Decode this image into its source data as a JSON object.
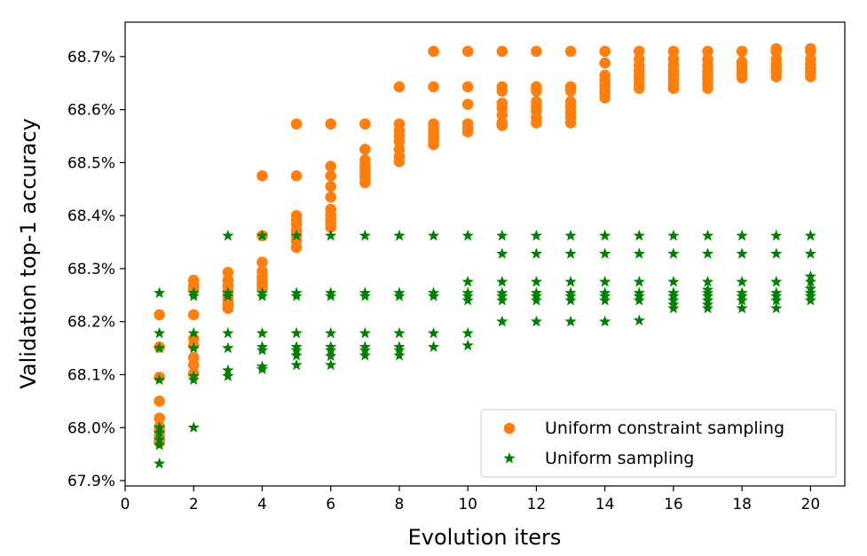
{
  "chart_data": {
    "type": "scatter",
    "title": "",
    "xlabel": "Evolution iters",
    "ylabel": "Validation top-1 accuracy",
    "xlim": [
      0,
      21
    ],
    "ylim": [
      67.89,
      68.765
    ],
    "xticks": [
      0,
      2,
      4,
      6,
      8,
      10,
      12,
      14,
      16,
      18,
      20
    ],
    "xtick_labels": [
      "0",
      "2",
      "4",
      "6",
      "8",
      "10",
      "12",
      "14",
      "16",
      "18",
      "20"
    ],
    "yticks": [
      67.9,
      68.0,
      68.1,
      68.2,
      68.3,
      68.4,
      68.5,
      68.6,
      68.7
    ],
    "ytick_labels": [
      "67.9%",
      "68.0%",
      "68.1%",
      "68.2%",
      "68.3%",
      "68.4%",
      "68.5%",
      "68.6%",
      "68.7%"
    ],
    "grid": false,
    "legend_position": "bottom-right",
    "series": [
      {
        "name": "Uniform constraint sampling",
        "marker": "circle",
        "color": "#ff7f0e",
        "points": [
          [
            1,
            68.213
          ],
          [
            1,
            68.152
          ],
          [
            1,
            68.095
          ],
          [
            1,
            68.05
          ],
          [
            1,
            68.018
          ],
          [
            1,
            68.002
          ],
          [
            1,
            67.993
          ],
          [
            1,
            67.985
          ],
          [
            1,
            67.978
          ],
          [
            1,
            67.972
          ],
          [
            2,
            68.278
          ],
          [
            2,
            68.268
          ],
          [
            2,
            68.26
          ],
          [
            2,
            68.213
          ],
          [
            2,
            68.168
          ],
          [
            2,
            68.155
          ],
          [
            2,
            68.132
          ],
          [
            2,
            68.118
          ],
          [
            2,
            68.102
          ],
          [
            3,
            68.293
          ],
          [
            3,
            68.278
          ],
          [
            3,
            68.268
          ],
          [
            3,
            68.258
          ],
          [
            3,
            68.248
          ],
          [
            3,
            68.24
          ],
          [
            3,
            68.232
          ],
          [
            3,
            68.225
          ],
          [
            4,
            68.475
          ],
          [
            4,
            68.362
          ],
          [
            4,
            68.312
          ],
          [
            4,
            68.295
          ],
          [
            4,
            68.285
          ],
          [
            4,
            68.278
          ],
          [
            4,
            68.27
          ],
          [
            4,
            68.262
          ],
          [
            5,
            68.573
          ],
          [
            5,
            68.475
          ],
          [
            5,
            68.4
          ],
          [
            5,
            68.392
          ],
          [
            5,
            68.383
          ],
          [
            5,
            68.372
          ],
          [
            5,
            68.362
          ],
          [
            5,
            68.352
          ],
          [
            5,
            68.34
          ],
          [
            6,
            68.573
          ],
          [
            6,
            68.493
          ],
          [
            6,
            68.475
          ],
          [
            6,
            68.455
          ],
          [
            6,
            68.435
          ],
          [
            6,
            68.412
          ],
          [
            6,
            68.402
          ],
          [
            6,
            68.393
          ],
          [
            6,
            68.385
          ],
          [
            6,
            68.378
          ],
          [
            7,
            68.573
          ],
          [
            7,
            68.525
          ],
          [
            7,
            68.505
          ],
          [
            7,
            68.495
          ],
          [
            7,
            68.488
          ],
          [
            7,
            68.48
          ],
          [
            7,
            68.472
          ],
          [
            7,
            68.462
          ],
          [
            8,
            68.643
          ],
          [
            8,
            68.573
          ],
          [
            8,
            68.56
          ],
          [
            8,
            68.55
          ],
          [
            8,
            68.54
          ],
          [
            8,
            68.525
          ],
          [
            8,
            68.512
          ],
          [
            8,
            68.502
          ],
          [
            9,
            68.71
          ],
          [
            9,
            68.643
          ],
          [
            9,
            68.573
          ],
          [
            9,
            68.565
          ],
          [
            9,
            68.557
          ],
          [
            9,
            68.549
          ],
          [
            9,
            68.542
          ],
          [
            9,
            68.534
          ],
          [
            10,
            68.71
          ],
          [
            10,
            68.643
          ],
          [
            10,
            68.61
          ],
          [
            10,
            68.573
          ],
          [
            10,
            68.565
          ],
          [
            10,
            68.558
          ],
          [
            11,
            68.71
          ],
          [
            11,
            68.643
          ],
          [
            11,
            68.635
          ],
          [
            11,
            68.612
          ],
          [
            11,
            68.603
          ],
          [
            11,
            68.59
          ],
          [
            11,
            68.575
          ],
          [
            11,
            68.57
          ],
          [
            12,
            68.71
          ],
          [
            12,
            68.643
          ],
          [
            12,
            68.635
          ],
          [
            12,
            68.615
          ],
          [
            12,
            68.605
          ],
          [
            12,
            68.598
          ],
          [
            12,
            68.585
          ],
          [
            12,
            68.575
          ],
          [
            13,
            68.71
          ],
          [
            13,
            68.643
          ],
          [
            13,
            68.635
          ],
          [
            13,
            68.615
          ],
          [
            13,
            68.605
          ],
          [
            13,
            68.595
          ],
          [
            13,
            68.585
          ],
          [
            13,
            68.575
          ],
          [
            14,
            68.71
          ],
          [
            14,
            68.688
          ],
          [
            14,
            68.665
          ],
          [
            14,
            68.655
          ],
          [
            14,
            68.648
          ],
          [
            14,
            68.64
          ],
          [
            14,
            68.632
          ],
          [
            14,
            68.622
          ],
          [
            15,
            68.71
          ],
          [
            15,
            68.695
          ],
          [
            15,
            68.683
          ],
          [
            15,
            68.673
          ],
          [
            15,
            68.665
          ],
          [
            15,
            68.657
          ],
          [
            15,
            68.648
          ],
          [
            15,
            68.64
          ],
          [
            16,
            68.71
          ],
          [
            16,
            68.695
          ],
          [
            16,
            68.683
          ],
          [
            16,
            68.673
          ],
          [
            16,
            68.665
          ],
          [
            16,
            68.657
          ],
          [
            16,
            68.648
          ],
          [
            16,
            68.64
          ],
          [
            17,
            68.71
          ],
          [
            17,
            68.695
          ],
          [
            17,
            68.683
          ],
          [
            17,
            68.673
          ],
          [
            17,
            68.665
          ],
          [
            17,
            68.657
          ],
          [
            17,
            68.648
          ],
          [
            17,
            68.64
          ],
          [
            18,
            68.71
          ],
          [
            18,
            68.69
          ],
          [
            18,
            68.683
          ],
          [
            18,
            68.675
          ],
          [
            18,
            68.668
          ],
          [
            18,
            68.66
          ],
          [
            19,
            68.715
          ],
          [
            19,
            68.71
          ],
          [
            19,
            68.695
          ],
          [
            19,
            68.685
          ],
          [
            19,
            68.678
          ],
          [
            19,
            68.67
          ],
          [
            19,
            68.662
          ],
          [
            20,
            68.715
          ],
          [
            20,
            68.71
          ],
          [
            20,
            68.695
          ],
          [
            20,
            68.685
          ],
          [
            20,
            68.678
          ],
          [
            20,
            68.67
          ],
          [
            20,
            68.662
          ]
        ]
      },
      {
        "name": "Uniform sampling",
        "marker": "star",
        "color": "#008000",
        "points": [
          [
            1,
            68.254
          ],
          [
            1,
            68.178
          ],
          [
            1,
            68.15
          ],
          [
            1,
            68.09
          ],
          [
            1,
            68.0
          ],
          [
            1,
            67.99
          ],
          [
            1,
            67.977
          ],
          [
            1,
            67.967
          ],
          [
            1,
            67.932
          ],
          [
            2,
            68.254
          ],
          [
            2,
            68.248
          ],
          [
            2,
            68.178
          ],
          [
            2,
            68.15
          ],
          [
            2,
            68.097
          ],
          [
            2,
            68.09
          ],
          [
            2,
            68.0
          ],
          [
            3,
            68.362
          ],
          [
            3,
            68.254
          ],
          [
            3,
            68.248
          ],
          [
            3,
            68.178
          ],
          [
            3,
            68.15
          ],
          [
            3,
            68.108
          ],
          [
            3,
            68.097
          ],
          [
            4,
            68.362
          ],
          [
            4,
            68.254
          ],
          [
            4,
            68.248
          ],
          [
            4,
            68.178
          ],
          [
            4,
            68.152
          ],
          [
            4,
            68.146
          ],
          [
            4,
            68.115
          ],
          [
            4,
            68.11
          ],
          [
            5,
            68.362
          ],
          [
            5,
            68.254
          ],
          [
            5,
            68.248
          ],
          [
            5,
            68.178
          ],
          [
            5,
            68.152
          ],
          [
            5,
            68.146
          ],
          [
            5,
            68.136
          ],
          [
            5,
            68.118
          ],
          [
            6,
            68.362
          ],
          [
            6,
            68.254
          ],
          [
            6,
            68.248
          ],
          [
            6,
            68.178
          ],
          [
            6,
            68.152
          ],
          [
            6,
            68.146
          ],
          [
            6,
            68.135
          ],
          [
            6,
            68.118
          ],
          [
            7,
            68.362
          ],
          [
            7,
            68.254
          ],
          [
            7,
            68.248
          ],
          [
            7,
            68.178
          ],
          [
            7,
            68.152
          ],
          [
            7,
            68.146
          ],
          [
            7,
            68.136
          ],
          [
            8,
            68.362
          ],
          [
            8,
            68.254
          ],
          [
            8,
            68.248
          ],
          [
            8,
            68.178
          ],
          [
            8,
            68.152
          ],
          [
            8,
            68.146
          ],
          [
            8,
            68.136
          ],
          [
            9,
            68.362
          ],
          [
            9,
            68.254
          ],
          [
            9,
            68.248
          ],
          [
            9,
            68.178
          ],
          [
            9,
            68.152
          ],
          [
            10,
            68.362
          ],
          [
            10,
            68.275
          ],
          [
            10,
            68.254
          ],
          [
            10,
            68.248
          ],
          [
            10,
            68.24
          ],
          [
            10,
            68.178
          ],
          [
            10,
            68.155
          ],
          [
            11,
            68.362
          ],
          [
            11,
            68.328
          ],
          [
            11,
            68.275
          ],
          [
            11,
            68.254
          ],
          [
            11,
            68.248
          ],
          [
            11,
            68.24
          ],
          [
            11,
            68.2
          ],
          [
            12,
            68.362
          ],
          [
            12,
            68.328
          ],
          [
            12,
            68.275
          ],
          [
            12,
            68.254
          ],
          [
            12,
            68.248
          ],
          [
            12,
            68.24
          ],
          [
            12,
            68.2
          ],
          [
            13,
            68.362
          ],
          [
            13,
            68.328
          ],
          [
            13,
            68.275
          ],
          [
            13,
            68.254
          ],
          [
            13,
            68.248
          ],
          [
            13,
            68.24
          ],
          [
            13,
            68.2
          ],
          [
            14,
            68.362
          ],
          [
            14,
            68.328
          ],
          [
            14,
            68.275
          ],
          [
            14,
            68.254
          ],
          [
            14,
            68.248
          ],
          [
            14,
            68.24
          ],
          [
            14,
            68.2
          ],
          [
            15,
            68.362
          ],
          [
            15,
            68.328
          ],
          [
            15,
            68.275
          ],
          [
            15,
            68.254
          ],
          [
            15,
            68.248
          ],
          [
            15,
            68.24
          ],
          [
            15,
            68.202
          ],
          [
            16,
            68.362
          ],
          [
            16,
            68.328
          ],
          [
            16,
            68.275
          ],
          [
            16,
            68.254
          ],
          [
            16,
            68.248
          ],
          [
            16,
            68.24
          ],
          [
            16,
            68.232
          ],
          [
            16,
            68.225
          ],
          [
            17,
            68.362
          ],
          [
            17,
            68.328
          ],
          [
            17,
            68.275
          ],
          [
            17,
            68.26
          ],
          [
            17,
            68.254
          ],
          [
            17,
            68.248
          ],
          [
            17,
            68.24
          ],
          [
            17,
            68.232
          ],
          [
            17,
            68.225
          ],
          [
            18,
            68.362
          ],
          [
            18,
            68.328
          ],
          [
            18,
            68.275
          ],
          [
            18,
            68.254
          ],
          [
            18,
            68.248
          ],
          [
            18,
            68.24
          ],
          [
            18,
            68.225
          ],
          [
            19,
            68.362
          ],
          [
            19,
            68.328
          ],
          [
            19,
            68.275
          ],
          [
            19,
            68.254
          ],
          [
            19,
            68.248
          ],
          [
            19,
            68.24
          ],
          [
            19,
            68.225
          ],
          [
            20,
            68.362
          ],
          [
            20,
            68.328
          ],
          [
            20,
            68.285
          ],
          [
            20,
            68.275
          ],
          [
            20,
            68.262
          ],
          [
            20,
            68.254
          ],
          [
            20,
            68.248
          ],
          [
            20,
            68.24
          ]
        ]
      }
    ]
  }
}
